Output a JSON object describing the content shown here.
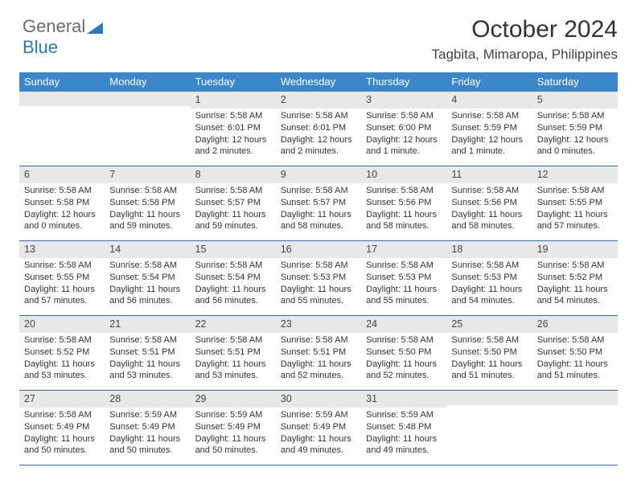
{
  "logo": {
    "text_gray": "General",
    "text_blue": "Blue"
  },
  "title": "October 2024",
  "location": "Tagbita, Mimaropa, Philippines",
  "colors": {
    "header_bg": "#3c87c7",
    "header_text": "#ffffff",
    "daynum_bg": "#e8e8e8",
    "week_border": "#2f6aa0",
    "body_text": "#333333"
  },
  "typography": {
    "title_fontsize": 30,
    "location_fontsize": 17,
    "dayhead_fontsize": 13,
    "daynum_fontsize": 12.5,
    "cell_fontsize": 11
  },
  "day_names": [
    "Sunday",
    "Monday",
    "Tuesday",
    "Wednesday",
    "Thursday",
    "Friday",
    "Saturday"
  ],
  "weeks": [
    [
      {
        "day": "",
        "sunrise": "",
        "sunset": "",
        "daylight": ""
      },
      {
        "day": "",
        "sunrise": "",
        "sunset": "",
        "daylight": ""
      },
      {
        "day": "1",
        "sunrise": "Sunrise: 5:58 AM",
        "sunset": "Sunset: 6:01 PM",
        "daylight": "Daylight: 12 hours and 2 minutes."
      },
      {
        "day": "2",
        "sunrise": "Sunrise: 5:58 AM",
        "sunset": "Sunset: 6:01 PM",
        "daylight": "Daylight: 12 hours and 2 minutes."
      },
      {
        "day": "3",
        "sunrise": "Sunrise: 5:58 AM",
        "sunset": "Sunset: 6:00 PM",
        "daylight": "Daylight: 12 hours and 1 minute."
      },
      {
        "day": "4",
        "sunrise": "Sunrise: 5:58 AM",
        "sunset": "Sunset: 5:59 PM",
        "daylight": "Daylight: 12 hours and 1 minute."
      },
      {
        "day": "5",
        "sunrise": "Sunrise: 5:58 AM",
        "sunset": "Sunset: 5:59 PM",
        "daylight": "Daylight: 12 hours and 0 minutes."
      }
    ],
    [
      {
        "day": "6",
        "sunrise": "Sunrise: 5:58 AM",
        "sunset": "Sunset: 5:58 PM",
        "daylight": "Daylight: 12 hours and 0 minutes."
      },
      {
        "day": "7",
        "sunrise": "Sunrise: 5:58 AM",
        "sunset": "Sunset: 5:58 PM",
        "daylight": "Daylight: 11 hours and 59 minutes."
      },
      {
        "day": "8",
        "sunrise": "Sunrise: 5:58 AM",
        "sunset": "Sunset: 5:57 PM",
        "daylight": "Daylight: 11 hours and 59 minutes."
      },
      {
        "day": "9",
        "sunrise": "Sunrise: 5:58 AM",
        "sunset": "Sunset: 5:57 PM",
        "daylight": "Daylight: 11 hours and 58 minutes."
      },
      {
        "day": "10",
        "sunrise": "Sunrise: 5:58 AM",
        "sunset": "Sunset: 5:56 PM",
        "daylight": "Daylight: 11 hours and 58 minutes."
      },
      {
        "day": "11",
        "sunrise": "Sunrise: 5:58 AM",
        "sunset": "Sunset: 5:56 PM",
        "daylight": "Daylight: 11 hours and 58 minutes."
      },
      {
        "day": "12",
        "sunrise": "Sunrise: 5:58 AM",
        "sunset": "Sunset: 5:55 PM",
        "daylight": "Daylight: 11 hours and 57 minutes."
      }
    ],
    [
      {
        "day": "13",
        "sunrise": "Sunrise: 5:58 AM",
        "sunset": "Sunset: 5:55 PM",
        "daylight": "Daylight: 11 hours and 57 minutes."
      },
      {
        "day": "14",
        "sunrise": "Sunrise: 5:58 AM",
        "sunset": "Sunset: 5:54 PM",
        "daylight": "Daylight: 11 hours and 56 minutes."
      },
      {
        "day": "15",
        "sunrise": "Sunrise: 5:58 AM",
        "sunset": "Sunset: 5:54 PM",
        "daylight": "Daylight: 11 hours and 56 minutes."
      },
      {
        "day": "16",
        "sunrise": "Sunrise: 5:58 AM",
        "sunset": "Sunset: 5:53 PM",
        "daylight": "Daylight: 11 hours and 55 minutes."
      },
      {
        "day": "17",
        "sunrise": "Sunrise: 5:58 AM",
        "sunset": "Sunset: 5:53 PM",
        "daylight": "Daylight: 11 hours and 55 minutes."
      },
      {
        "day": "18",
        "sunrise": "Sunrise: 5:58 AM",
        "sunset": "Sunset: 5:53 PM",
        "daylight": "Daylight: 11 hours and 54 minutes."
      },
      {
        "day": "19",
        "sunrise": "Sunrise: 5:58 AM",
        "sunset": "Sunset: 5:52 PM",
        "daylight": "Daylight: 11 hours and 54 minutes."
      }
    ],
    [
      {
        "day": "20",
        "sunrise": "Sunrise: 5:58 AM",
        "sunset": "Sunset: 5:52 PM",
        "daylight": "Daylight: 11 hours and 53 minutes."
      },
      {
        "day": "21",
        "sunrise": "Sunrise: 5:58 AM",
        "sunset": "Sunset: 5:51 PM",
        "daylight": "Daylight: 11 hours and 53 minutes."
      },
      {
        "day": "22",
        "sunrise": "Sunrise: 5:58 AM",
        "sunset": "Sunset: 5:51 PM",
        "daylight": "Daylight: 11 hours and 53 minutes."
      },
      {
        "day": "23",
        "sunrise": "Sunrise: 5:58 AM",
        "sunset": "Sunset: 5:51 PM",
        "daylight": "Daylight: 11 hours and 52 minutes."
      },
      {
        "day": "24",
        "sunrise": "Sunrise: 5:58 AM",
        "sunset": "Sunset: 5:50 PM",
        "daylight": "Daylight: 11 hours and 52 minutes."
      },
      {
        "day": "25",
        "sunrise": "Sunrise: 5:58 AM",
        "sunset": "Sunset: 5:50 PM",
        "daylight": "Daylight: 11 hours and 51 minutes."
      },
      {
        "day": "26",
        "sunrise": "Sunrise: 5:58 AM",
        "sunset": "Sunset: 5:50 PM",
        "daylight": "Daylight: 11 hours and 51 minutes."
      }
    ],
    [
      {
        "day": "27",
        "sunrise": "Sunrise: 5:58 AM",
        "sunset": "Sunset: 5:49 PM",
        "daylight": "Daylight: 11 hours and 50 minutes."
      },
      {
        "day": "28",
        "sunrise": "Sunrise: 5:59 AM",
        "sunset": "Sunset: 5:49 PM",
        "daylight": "Daylight: 11 hours and 50 minutes."
      },
      {
        "day": "29",
        "sunrise": "Sunrise: 5:59 AM",
        "sunset": "Sunset: 5:49 PM",
        "daylight": "Daylight: 11 hours and 50 minutes."
      },
      {
        "day": "30",
        "sunrise": "Sunrise: 5:59 AM",
        "sunset": "Sunset: 5:49 PM",
        "daylight": "Daylight: 11 hours and 49 minutes."
      },
      {
        "day": "31",
        "sunrise": "Sunrise: 5:59 AM",
        "sunset": "Sunset: 5:48 PM",
        "daylight": "Daylight: 11 hours and 49 minutes."
      },
      {
        "day": "",
        "sunrise": "",
        "sunset": "",
        "daylight": ""
      },
      {
        "day": "",
        "sunrise": "",
        "sunset": "",
        "daylight": ""
      }
    ]
  ]
}
